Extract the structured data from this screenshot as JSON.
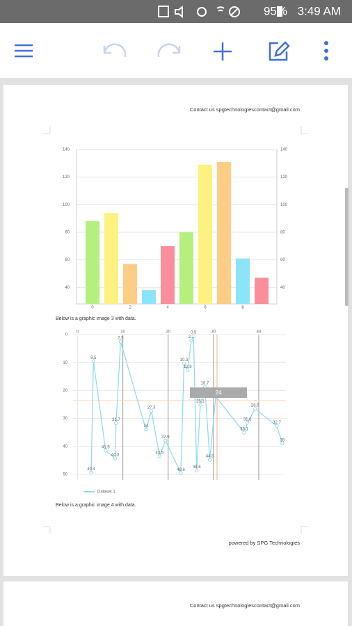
{
  "status_bar": {
    "battery": "95%",
    "time": "3:49 AM"
  },
  "document": {
    "header": "Contact us spgtechnologiescontact@gmail.com",
    "caption_1": "Below is a graphic image 3 with data.",
    "caption_2": "Below is a graphic image 4 with data.",
    "footer": "powered by SPG Technologies",
    "next_page_header": "Contact us spgtechnologiescontact@gmail.com"
  },
  "chart_data": [
    {
      "type": "bar",
      "categories": [
        "0",
        null,
        "2",
        null,
        "4",
        null,
        "6",
        null,
        "8",
        null
      ],
      "values": [
        88,
        94,
        57,
        38,
        70,
        80,
        129,
        131,
        61,
        47
      ],
      "colors": [
        "#b4f07c",
        "#fdf17f",
        "#fdcd86",
        "#8ce4f8",
        "#fb8e9d",
        "#b4f07c",
        "#fdf17f",
        "#fdcd86",
        "#8ce4f8",
        "#fb8e9d"
      ],
      "ylim": [
        28,
        140
      ],
      "yticks": [
        40,
        60,
        80,
        100,
        120,
        140
      ],
      "y2lim": [
        28,
        140
      ],
      "y2ticks": [
        40,
        60,
        80,
        100,
        120,
        140
      ]
    },
    {
      "type": "line",
      "x": [
        3,
        3.5,
        6.2,
        8.3,
        8.5,
        9.5,
        15.1,
        16.3,
        18.1,
        19.4,
        22.8,
        23.5,
        24.3,
        25.1,
        25.6,
        26.3,
        27.1,
        28.1,
        29.2,
        30.5,
        36.8,
        37.5,
        39.2,
        44,
        45.2
      ],
      "series": [
        {
          "name": "Dataset 1",
          "color": "#8fdcf0",
          "values": [
            49.4,
            9.5,
            41.5,
            44.3,
            31.7,
            2.5,
            34.0,
            27.3,
            43.5,
            37.9,
            49.6,
            10.3,
            12.8,
            2.1,
            0.5,
            48.6,
            25.1,
            18.7,
            44.8,
            22.2,
            35.1,
            31.6,
            26.6,
            32.7,
            39.0
          ]
        }
      ],
      "xlim": [
        -1,
        46
      ],
      "ylim": [
        52,
        0
      ],
      "xticks": [
        0,
        10,
        20,
        30,
        40
      ],
      "yticks": [
        0,
        10,
        20,
        30,
        40,
        50
      ],
      "tooltip": "24"
    }
  ]
}
